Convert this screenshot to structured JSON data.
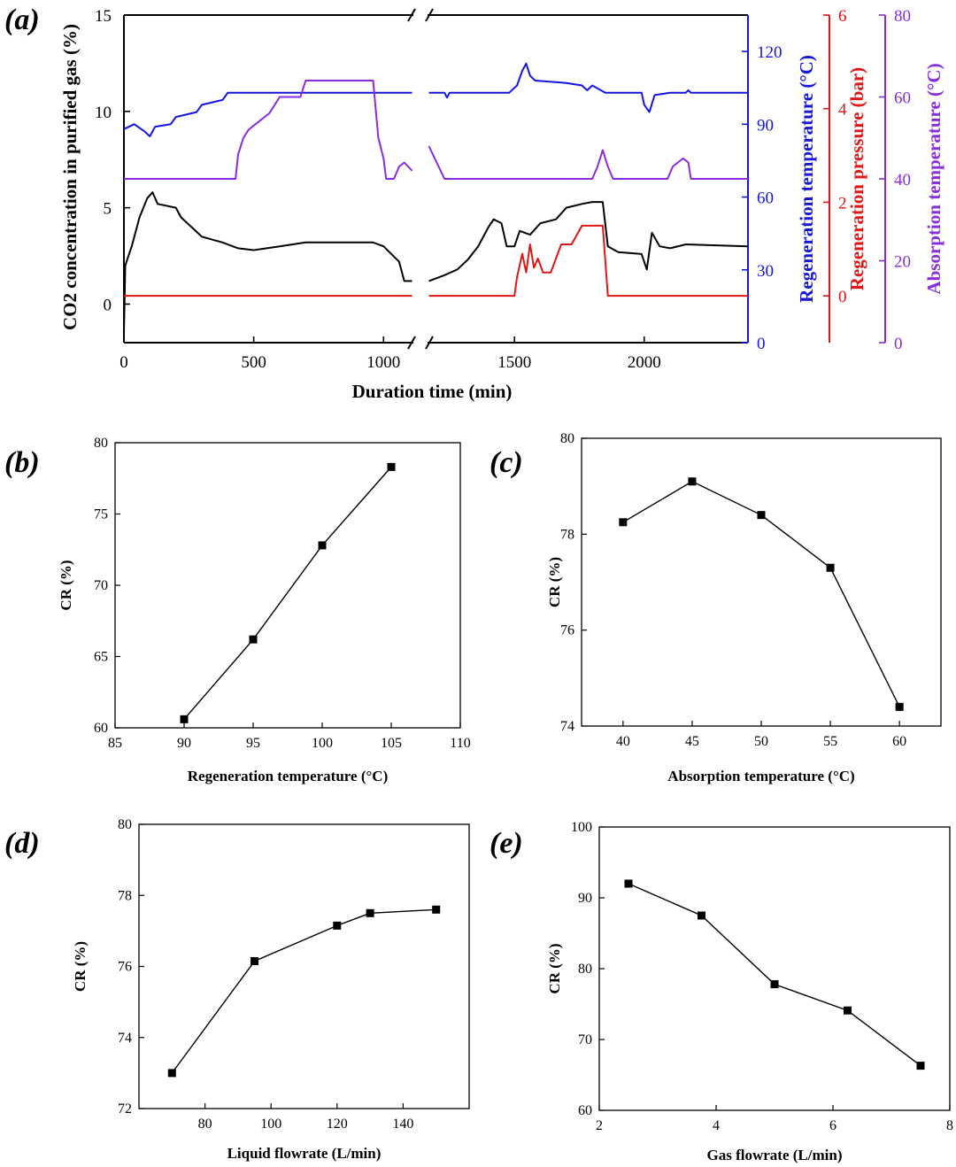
{
  "chart_data": [
    {
      "id": "a",
      "type": "line",
      "panel_label": "(a)",
      "xlabel": "Duration time (min)",
      "ylabel_left": "CO2 concentration in purified gas (%)",
      "ylabel_regen_temp": "Regeneration temperature (°C)",
      "ylabel_regen_pressure": "Regeneration pressure (bar)",
      "ylabel_abs_temp": "Absorption temperature (°C)",
      "xlim": [
        0,
        2400
      ],
      "x_break": [
        1115,
        1165
      ],
      "xticks": [
        0,
        500,
        1000,
        1500,
        2000
      ],
      "axes": {
        "co2": {
          "ylim": [
            -2,
            15
          ],
          "ticks": [
            0,
            5,
            10,
            15
          ],
          "color": "#000000"
        },
        "regen_temp": {
          "ylim": [
            0,
            135
          ],
          "ticks": [
            0,
            30,
            60,
            90,
            120
          ],
          "color": "#1515e0"
        },
        "regen_pressure": {
          "ylim": [
            -1,
            6
          ],
          "ticks": [
            0,
            2,
            4,
            6
          ],
          "color": "#e01515"
        },
        "abs_temp": {
          "ylim": [
            0,
            80
          ],
          "ticks": [
            0,
            20,
            40,
            60,
            80
          ],
          "color": "#8a2be2"
        }
      },
      "series": [
        {
          "name": "Regeneration temperature",
          "axis": "regen_temp",
          "color": "#1515e0",
          "points": [
            [
              0,
              88
            ],
            [
              40,
              90
            ],
            [
              80,
              87
            ],
            [
              100,
              85
            ],
            [
              120,
              89
            ],
            [
              180,
              90
            ],
            [
              200,
              93
            ],
            [
              280,
              95
            ],
            [
              300,
              98
            ],
            [
              380,
              100
            ],
            [
              400,
              103
            ],
            [
              1110,
              103
            ],
            [
              1170,
              103
            ],
            [
              1230,
              103
            ],
            [
              1240,
              101
            ],
            [
              1250,
              103
            ],
            [
              1480,
              103
            ],
            [
              1510,
              106
            ],
            [
              1530,
              112
            ],
            [
              1545,
              115
            ],
            [
              1560,
              110
            ],
            [
              1580,
              108
            ],
            [
              1700,
              107
            ],
            [
              1760,
              106
            ],
            [
              1780,
              104
            ],
            [
              1800,
              106
            ],
            [
              1850,
              103
            ],
            [
              1990,
              103
            ],
            [
              2000,
              98
            ],
            [
              2020,
              95
            ],
            [
              2040,
              102
            ],
            [
              2100,
              103
            ],
            [
              2160,
              103
            ],
            [
              2170,
              104
            ],
            [
              2180,
              103
            ],
            [
              2400,
              103
            ]
          ]
        },
        {
          "name": "Absorption temperature",
          "axis": "abs_temp",
          "color": "#8a2be2",
          "points": [
            [
              0,
              40
            ],
            [
              420,
              40
            ],
            [
              430,
              40
            ],
            [
              440,
              46
            ],
            [
              460,
              50
            ],
            [
              480,
              52
            ],
            [
              520,
              54
            ],
            [
              560,
              56
            ],
            [
              580,
              58
            ],
            [
              600,
              60
            ],
            [
              680,
              60
            ],
            [
              700,
              64
            ],
            [
              960,
              64
            ],
            [
              980,
              50
            ],
            [
              1000,
              45
            ],
            [
              1010,
              40
            ],
            [
              1040,
              40
            ],
            [
              1060,
              43
            ],
            [
              1080,
              44
            ],
            [
              1110,
              42
            ],
            [
              1170,
              48
            ],
            [
              1200,
              44
            ],
            [
              1230,
              40
            ],
            [
              1800,
              40
            ],
            [
              1820,
              43
            ],
            [
              1840,
              47
            ],
            [
              1860,
              43
            ],
            [
              1880,
              40
            ],
            [
              2090,
              40
            ],
            [
              2110,
              43
            ],
            [
              2150,
              45
            ],
            [
              2170,
              44
            ],
            [
              2180,
              40
            ],
            [
              2400,
              40
            ]
          ]
        },
        {
          "name": "CO2 concentration",
          "axis": "co2",
          "color": "#000000",
          "points": [
            [
              0,
              -1.5
            ],
            [
              5,
              2
            ],
            [
              30,
              3
            ],
            [
              60,
              4.5
            ],
            [
              90,
              5.5
            ],
            [
              110,
              5.8
            ],
            [
              130,
              5.2
            ],
            [
              200,
              5.0
            ],
            [
              220,
              4.5
            ],
            [
              260,
              4.0
            ],
            [
              300,
              3.5
            ],
            [
              380,
              3.2
            ],
            [
              440,
              2.9
            ],
            [
              500,
              2.8
            ],
            [
              600,
              3.0
            ],
            [
              700,
              3.2
            ],
            [
              960,
              3.2
            ],
            [
              1000,
              3.0
            ],
            [
              1030,
              2.6
            ],
            [
              1060,
              2.2
            ],
            [
              1080,
              1.2
            ],
            [
              1110,
              1.2
            ],
            [
              1170,
              1.2
            ],
            [
              1230,
              1.5
            ],
            [
              1280,
              1.8
            ],
            [
              1320,
              2.3
            ],
            [
              1360,
              3.0
            ],
            [
              1400,
              4.0
            ],
            [
              1420,
              4.4
            ],
            [
              1450,
              4.2
            ],
            [
              1470,
              3.0
            ],
            [
              1500,
              3.0
            ],
            [
              1520,
              3.8
            ],
            [
              1560,
              3.6
            ],
            [
              1600,
              4.2
            ],
            [
              1660,
              4.4
            ],
            [
              1700,
              5.0
            ],
            [
              1760,
              5.2
            ],
            [
              1800,
              5.3
            ],
            [
              1840,
              5.3
            ],
            [
              1860,
              3.0
            ],
            [
              1900,
              2.7
            ],
            [
              1990,
              2.6
            ],
            [
              2010,
              1.8
            ],
            [
              2030,
              3.7
            ],
            [
              2060,
              3.0
            ],
            [
              2100,
              2.9
            ],
            [
              2160,
              3.1
            ],
            [
              2400,
              3.0
            ]
          ]
        },
        {
          "name": "Regeneration pressure",
          "axis": "regen_pressure",
          "color": "#e01515",
          "points": [
            [
              0,
              0
            ],
            [
              1110,
              0
            ],
            [
              1170,
              0
            ],
            [
              1500,
              0
            ],
            [
              1510,
              0.4
            ],
            [
              1530,
              0.9
            ],
            [
              1545,
              0.5
            ],
            [
              1560,
              1.1
            ],
            [
              1575,
              0.6
            ],
            [
              1590,
              0.8
            ],
            [
              1610,
              0.5
            ],
            [
              1640,
              0.5
            ],
            [
              1660,
              0.8
            ],
            [
              1680,
              1.1
            ],
            [
              1720,
              1.1
            ],
            [
              1760,
              1.5
            ],
            [
              1800,
              1.5
            ],
            [
              1840,
              1.5
            ],
            [
              1860,
              0
            ],
            [
              2400,
              0
            ]
          ]
        }
      ]
    },
    {
      "id": "b",
      "type": "line",
      "panel_label": "(b)",
      "xlabel": "Regeneration temperature (°C)",
      "ylabel": "CR (%)",
      "xlim": [
        85,
        110
      ],
      "ylim": [
        60,
        80
      ],
      "xticks": [
        85,
        90,
        95,
        100,
        105,
        110
      ],
      "yticks": [
        60,
        65,
        70,
        75,
        80
      ],
      "x": [
        90,
        95,
        100,
        105
      ],
      "y": [
        60.6,
        66.2,
        72.8,
        78.3
      ]
    },
    {
      "id": "c",
      "type": "line",
      "panel_label": "(c)",
      "xlabel": "Absorption temperature (°C)",
      "ylabel": "CR (%)",
      "xlim": [
        37,
        63
      ],
      "ylim": [
        74,
        80
      ],
      "xticks": [
        40,
        45,
        50,
        55,
        60
      ],
      "yticks": [
        74,
        76,
        78,
        80
      ],
      "x": [
        40,
        45,
        50,
        55,
        60
      ],
      "y": [
        78.25,
        79.1,
        78.4,
        77.3,
        74.4
      ]
    },
    {
      "id": "d",
      "type": "line",
      "panel_label": "(d)",
      "xlabel": "Liquid flowrate (L/min)",
      "ylabel": "CR (%)",
      "xlim": [
        60,
        160
      ],
      "ylim": [
        72,
        80
      ],
      "xticks": [
        80,
        100,
        120,
        140
      ],
      "yticks": [
        72,
        74,
        76,
        78,
        80
      ],
      "x": [
        70,
        95,
        120,
        130,
        150
      ],
      "y": [
        73.0,
        76.15,
        77.15,
        77.5,
        77.6
      ]
    },
    {
      "id": "e",
      "type": "line",
      "panel_label": "(e)",
      "xlabel": "Gas flowrate (L/min)",
      "ylabel": "CR (%)",
      "xlim": [
        2,
        8
      ],
      "ylim": [
        60,
        100
      ],
      "xticks": [
        2,
        4,
        6,
        8
      ],
      "yticks": [
        60,
        70,
        80,
        90,
        100
      ],
      "x": [
        2.5,
        3.75,
        5,
        6.25,
        7.5
      ],
      "y": [
        92.0,
        87.5,
        77.8,
        74.1,
        66.3
      ]
    }
  ]
}
